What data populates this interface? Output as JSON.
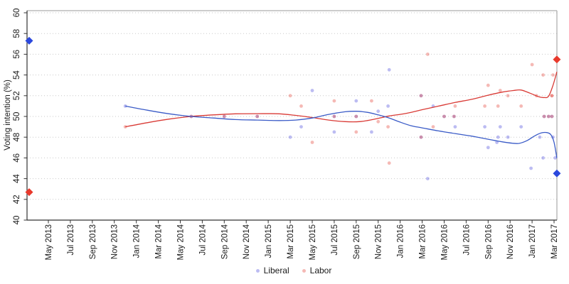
{
  "chart_data": {
    "type": "scatter",
    "title": "",
    "ylabel": "Voting intention (%)",
    "xlabel": "",
    "ylim": [
      40,
      60
    ],
    "grid": "dotted-horizontal",
    "yticks": [
      40,
      42,
      44,
      46,
      48,
      50,
      52,
      54,
      56,
      58,
      60
    ],
    "xtick_labels": [
      "May 2013",
      "Jul 2013",
      "Sep 2013",
      "Nov 2013",
      "Jan 2014",
      "Mar 2014",
      "May 2014",
      "Jul 2014",
      "Sep 2014",
      "Nov 2014",
      "Jan 2015",
      "Mar 2015",
      "May 2015",
      "Jul 2015",
      "Sep 2015",
      "Nov 2015",
      "Jan 2016",
      "Mar 2016",
      "May 2016",
      "Jul 2016",
      "Sep 2016",
      "Nov 2016",
      "Jan 2017",
      "Mar 2017"
    ],
    "xtick_month_start": 4,
    "xtick_month_step": 2,
    "legend": {
      "position": "bottom-center",
      "items": [
        {
          "label": "Liberal",
          "party": "liberal"
        },
        {
          "label": "Labor",
          "party": "labor"
        }
      ]
    },
    "colors": {
      "liberal_line": "#3a5bc7",
      "labor_line": "#d93a35",
      "liberal_point": "rgba(80,80,220,0.38)",
      "labor_point": "rgba(230,70,60,0.38)",
      "liberal_diamond": "#2b48dd",
      "labor_diamond": "#e8392c",
      "grid": "#c9c9c9",
      "axis": "#333333",
      "frame": "#999999",
      "text": "#1a1a1a"
    },
    "points": [
      {
        "m": 11,
        "v": 51,
        "t": "lib"
      },
      {
        "m": 11,
        "v": 49,
        "t": "lab"
      },
      {
        "m": 17,
        "v": 50,
        "t": "both"
      },
      {
        "m": 20,
        "v": 50,
        "t": "both"
      },
      {
        "m": 23,
        "v": 50,
        "t": "both"
      },
      {
        "m": 26,
        "v": 52,
        "t": "lab"
      },
      {
        "m": 26,
        "v": 48,
        "t": "lib"
      },
      {
        "m": 27,
        "v": 51,
        "t": "lab"
      },
      {
        "m": 27,
        "v": 49,
        "t": "lib"
      },
      {
        "m": 28,
        "v": 52.5,
        "t": "lib"
      },
      {
        "m": 28,
        "v": 47.5,
        "t": "lab"
      },
      {
        "m": 30,
        "v": 51.5,
        "t": "lab"
      },
      {
        "m": 30,
        "v": 48.5,
        "t": "lib"
      },
      {
        "m": 30,
        "v": 50,
        "t": "both"
      },
      {
        "m": 32,
        "v": 51.5,
        "t": "lib"
      },
      {
        "m": 32,
        "v": 48.5,
        "t": "lab"
      },
      {
        "m": 32,
        "v": 50,
        "t": "both"
      },
      {
        "m": 33.4,
        "v": 51.5,
        "t": "lab"
      },
      {
        "m": 33.4,
        "v": 48.5,
        "t": "lib"
      },
      {
        "m": 34,
        "v": 50.5,
        "t": "lib"
      },
      {
        "m": 34,
        "v": 49.5,
        "t": "lab"
      },
      {
        "m": 35,
        "v": 54.5,
        "t": "lib"
      },
      {
        "m": 35,
        "v": 45.5,
        "t": "lab"
      },
      {
        "m": 34.9,
        "v": 51,
        "t": "lib"
      },
      {
        "m": 34.9,
        "v": 49,
        "t": "lab"
      },
      {
        "m": 37.9,
        "v": 52,
        "t": "both"
      },
      {
        "m": 37.9,
        "v": 48,
        "t": "both"
      },
      {
        "m": 38.5,
        "v": 56,
        "t": "lab"
      },
      {
        "m": 38.5,
        "v": 44,
        "t": "lib"
      },
      {
        "m": 39,
        "v": 51,
        "t": "lib"
      },
      {
        "m": 39,
        "v": 49,
        "t": "lab"
      },
      {
        "m": 40,
        "v": 50,
        "t": "both"
      },
      {
        "m": 40.9,
        "v": 50,
        "t": "both"
      },
      {
        "m": 41,
        "v": 51,
        "t": "lab"
      },
      {
        "m": 41,
        "v": 49,
        "t": "lib"
      },
      {
        "m": 43.7,
        "v": 51,
        "t": "lab"
      },
      {
        "m": 43.7,
        "v": 49,
        "t": "lib"
      },
      {
        "m": 44,
        "v": 53,
        "t": "lab"
      },
      {
        "m": 44,
        "v": 47,
        "t": "lib"
      },
      {
        "m": 44.8,
        "v": 47.5,
        "t": "lib"
      },
      {
        "m": 44.9,
        "v": 51,
        "t": "lab"
      },
      {
        "m": 44.9,
        "v": 48,
        "t": "lib"
      },
      {
        "m": 45.1,
        "v": 52.5,
        "t": "lab"
      },
      {
        "m": 45.1,
        "v": 49,
        "t": "lib"
      },
      {
        "m": 45.8,
        "v": 52,
        "t": "lab"
      },
      {
        "m": 45.8,
        "v": 48,
        "t": "lib"
      },
      {
        "m": 47,
        "v": 51,
        "t": "lab"
      },
      {
        "m": 47,
        "v": 49,
        "t": "lib"
      },
      {
        "m": 48,
        "v": 55,
        "t": "lab"
      },
      {
        "m": 47.9,
        "v": 45,
        "t": "lib"
      },
      {
        "m": 48.4,
        "v": 52,
        "t": "lab"
      },
      {
        "m": 48.7,
        "v": 48,
        "t": "lib"
      },
      {
        "m": 49,
        "v": 54,
        "t": "lab"
      },
      {
        "m": 49,
        "v": 46,
        "t": "lib"
      },
      {
        "m": 49.1,
        "v": 50,
        "t": "both"
      },
      {
        "m": 49.5,
        "v": 50,
        "t": "both"
      },
      {
        "m": 49.8,
        "v": 50,
        "t": "both"
      },
      {
        "m": 49.8,
        "v": 52,
        "t": "lab2"
      },
      {
        "m": 49.9,
        "v": 54,
        "t": "lab"
      },
      {
        "m": 50.1,
        "v": 46,
        "t": "lib"
      },
      {
        "m": 49.9,
        "v": 48,
        "t": "lib"
      }
    ],
    "trend_liberal": [
      [
        11,
        51
      ],
      [
        13,
        50.6
      ],
      [
        15,
        50.25
      ],
      [
        17,
        50
      ],
      [
        19,
        49.85
      ],
      [
        21,
        49.7
      ],
      [
        23,
        49.65
      ],
      [
        25,
        49.6
      ],
      [
        26.5,
        49.65
      ],
      [
        28,
        49.85
      ],
      [
        29.5,
        50.2
      ],
      [
        31,
        50.45
      ],
      [
        32,
        50.5
      ],
      [
        33,
        50.4
      ],
      [
        34,
        50.15
      ],
      [
        35,
        49.85
      ],
      [
        36,
        49.45
      ],
      [
        37,
        49.1
      ],
      [
        38,
        48.9
      ],
      [
        39.5,
        48.6
      ],
      [
        41,
        48.35
      ],
      [
        42.5,
        48.1
      ],
      [
        44,
        47.8
      ],
      [
        45.3,
        47.55
      ],
      [
        46.2,
        47.42
      ],
      [
        46.8,
        47.4
      ],
      [
        47.5,
        47.65
      ],
      [
        48.2,
        48.1
      ],
      [
        48.8,
        48.4
      ],
      [
        49.3,
        48.45
      ],
      [
        49.7,
        48.25
      ],
      [
        50,
        47.5
      ],
      [
        50.25,
        46
      ]
    ],
    "trend_labor": [
      [
        11,
        49
      ],
      [
        13,
        49.4
      ],
      [
        15,
        49.75
      ],
      [
        17,
        50
      ],
      [
        19,
        50.15
      ],
      [
        21,
        50.25
      ],
      [
        23,
        50.27
      ],
      [
        25,
        50.25
      ],
      [
        26.5,
        50.1
      ],
      [
        28,
        49.9
      ],
      [
        29.5,
        49.65
      ],
      [
        31,
        49.5
      ],
      [
        32.3,
        49.5
      ],
      [
        33.5,
        49.7
      ],
      [
        35,
        50.05
      ],
      [
        36,
        50.2
      ],
      [
        37,
        50.4
      ],
      [
        38,
        50.65
      ],
      [
        39.5,
        51
      ],
      [
        41,
        51.35
      ],
      [
        42.5,
        51.65
      ],
      [
        44,
        52.05
      ],
      [
        45.3,
        52.35
      ],
      [
        46.3,
        52.5
      ],
      [
        47,
        52.55
      ],
      [
        47.8,
        52.25
      ],
      [
        48.6,
        51.9
      ],
      [
        49.1,
        51.82
      ],
      [
        49.5,
        51.95
      ],
      [
        49.9,
        53
      ],
      [
        50.25,
        54.3
      ]
    ],
    "elections": [
      {
        "m": 2.25,
        "liberal": 57.3,
        "labor": 42.7
      },
      {
        "m": 50.25,
        "liberal": 44.5,
        "labor": 55.5
      }
    ]
  }
}
